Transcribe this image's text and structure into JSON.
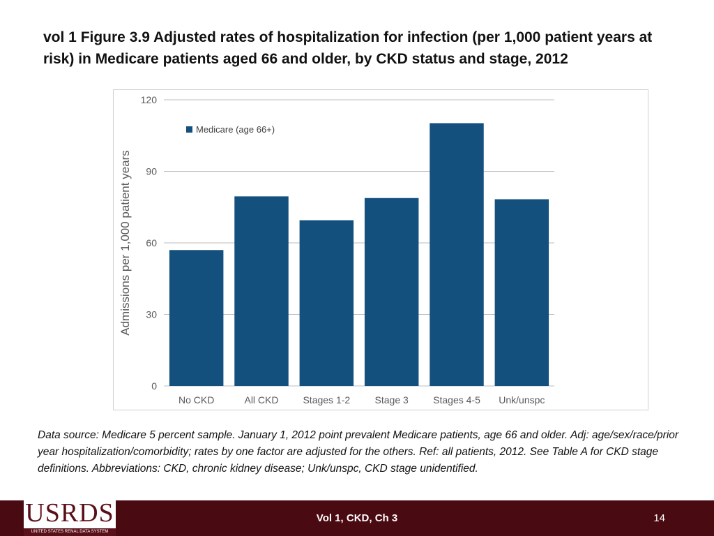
{
  "slide": {
    "title": "vol 1 Figure 3.9  Adjusted rates of hospitalization for infection (per 1,000 patient years at risk) in Medicare patients aged 66 and older, by CKD status and stage, 2012",
    "caption": "Data source: Medicare 5 percent sample. January 1, 2012 point prevalent Medicare patients, age 66 and older. Adj: age/sex/race/prior year hospitalization/comorbidity; rates by one factor are adjusted for the others. Ref: all patients, 2012. See Table A for CKD stage definitions. Abbreviations: CKD, chronic kidney disease; Unk/unspc, CKD stage unidentified."
  },
  "footer": {
    "logo_text": "USRDS",
    "logo_subtext": "UNITED STATES RENAL DATA SYSTEM",
    "center_text": "Vol 1, CKD, Ch 3",
    "page_number": "14"
  },
  "chart_data": {
    "type": "bar",
    "categories": [
      "No CKD",
      "All CKD",
      "Stages 1-2",
      "Stage 3",
      "Stages 4-5",
      "Unk/unspc"
    ],
    "series": [
      {
        "name": "Medicare (age 66+)",
        "values": [
          57,
          79.5,
          69.5,
          78.8,
          110.2,
          78.3
        ],
        "color": "#13507d"
      }
    ],
    "ylabel": "Admissions per 1,000 patient years",
    "xlabel": "",
    "ylim": [
      0,
      120
    ],
    "yticks": [
      0,
      30,
      60,
      90,
      120
    ],
    "grid": true,
    "legend_position": "top-left"
  }
}
